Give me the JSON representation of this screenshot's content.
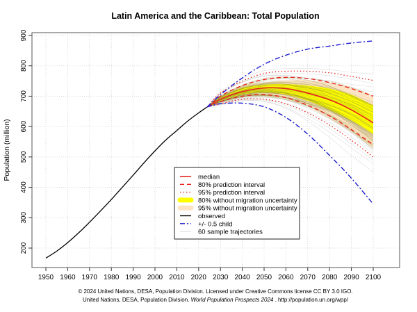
{
  "chart_data": {
    "type": "line",
    "title": "Latin America and the Caribbean: Total Population",
    "xlabel": "",
    "ylabel": "Population (million)",
    "xlim": [
      1950,
      2100
    ],
    "ylim": [
      200,
      900
    ],
    "x_ticks": [
      1950,
      1960,
      1970,
      1980,
      1990,
      2000,
      2010,
      2020,
      2030,
      2040,
      2050,
      2060,
      2070,
      2080,
      2090,
      2100
    ],
    "y_ticks": [
      200,
      300,
      400,
      500,
      600,
      700,
      800,
      900
    ],
    "grid": true,
    "legend_position": "bottom-center",
    "colors": {
      "median": "#e8241c",
      "pi": "#e8241c",
      "band80": "#ffff00",
      "band95": "#fbe3c3",
      "observed": "#000000",
      "child": "#1a1ad0",
      "trajectories": "#d9d9d9",
      "traj_dense": "#8a8a3a"
    },
    "observed": {
      "x": [
        1950,
        1955,
        1960,
        1965,
        1970,
        1975,
        1980,
        1985,
        1990,
        1995,
        2000,
        2005,
        2010,
        2015,
        2020,
        2024
      ],
      "y": [
        167,
        190,
        218,
        250,
        285,
        322,
        360,
        400,
        440,
        481,
        520,
        556,
        587,
        618,
        645,
        665
      ]
    },
    "proj_x": [
      2024,
      2030,
      2040,
      2050,
      2060,
      2070,
      2080,
      2090,
      2100
    ],
    "series": [
      {
        "name": "median",
        "y": [
          665,
          690,
          715,
          727,
          725,
          710,
          688,
          655,
          612
        ]
      },
      {
        "name": "80% prediction interval",
        "upper": [
          665,
          700,
          735,
          755,
          762,
          758,
          745,
          725,
          700
        ],
        "lower": [
          665,
          682,
          700,
          705,
          695,
          670,
          635,
          590,
          540
        ]
      },
      {
        "name": "95% prediction interval",
        "upper": [
          665,
          710,
          750,
          775,
          782,
          782,
          777,
          765,
          752
        ],
        "lower": [
          665,
          675,
          690,
          690,
          675,
          645,
          605,
          555,
          500
        ]
      },
      {
        "name": "80% without migration uncertainty",
        "upper": [
          665,
          695,
          728,
          738,
          740,
          735,
          725,
          705,
          670
        ],
        "lower": [
          665,
          685,
          705,
          712,
          705,
          685,
          655,
          620,
          575
        ]
      },
      {
        "name": "95% without migration uncertainty",
        "upper": [
          665,
          698,
          735,
          745,
          752,
          752,
          745,
          730,
          700
        ],
        "lower": [
          665,
          680,
          698,
          700,
          690,
          665,
          625,
          580,
          530
        ]
      },
      {
        "name": "+/- 0.5 child",
        "upper": [
          665,
          705,
          760,
          805,
          835,
          855,
          865,
          875,
          882
        ],
        "lower": [
          665,
          675,
          677,
          665,
          630,
          575,
          505,
          430,
          345
        ]
      }
    ],
    "sample_trajectories": 60,
    "legend": [
      "median",
      "80% prediction interval",
      "95% prediction interval",
      "80% without migration uncertainty",
      "95% without migration uncertainty",
      "observed",
      "+/- 0.5 child",
      "60 sample trajectories"
    ]
  },
  "footer": {
    "line1": "© 2024 United Nations, DESA, Population Division. Licensed under Creative Commons license CC BY 3.0 IGO.",
    "line2_a": "United Nations, DESA, Population Division. ",
    "line2_italic": "World Population Prospects 2024",
    "line2_b": " . http://population.un.org/wpp/"
  }
}
